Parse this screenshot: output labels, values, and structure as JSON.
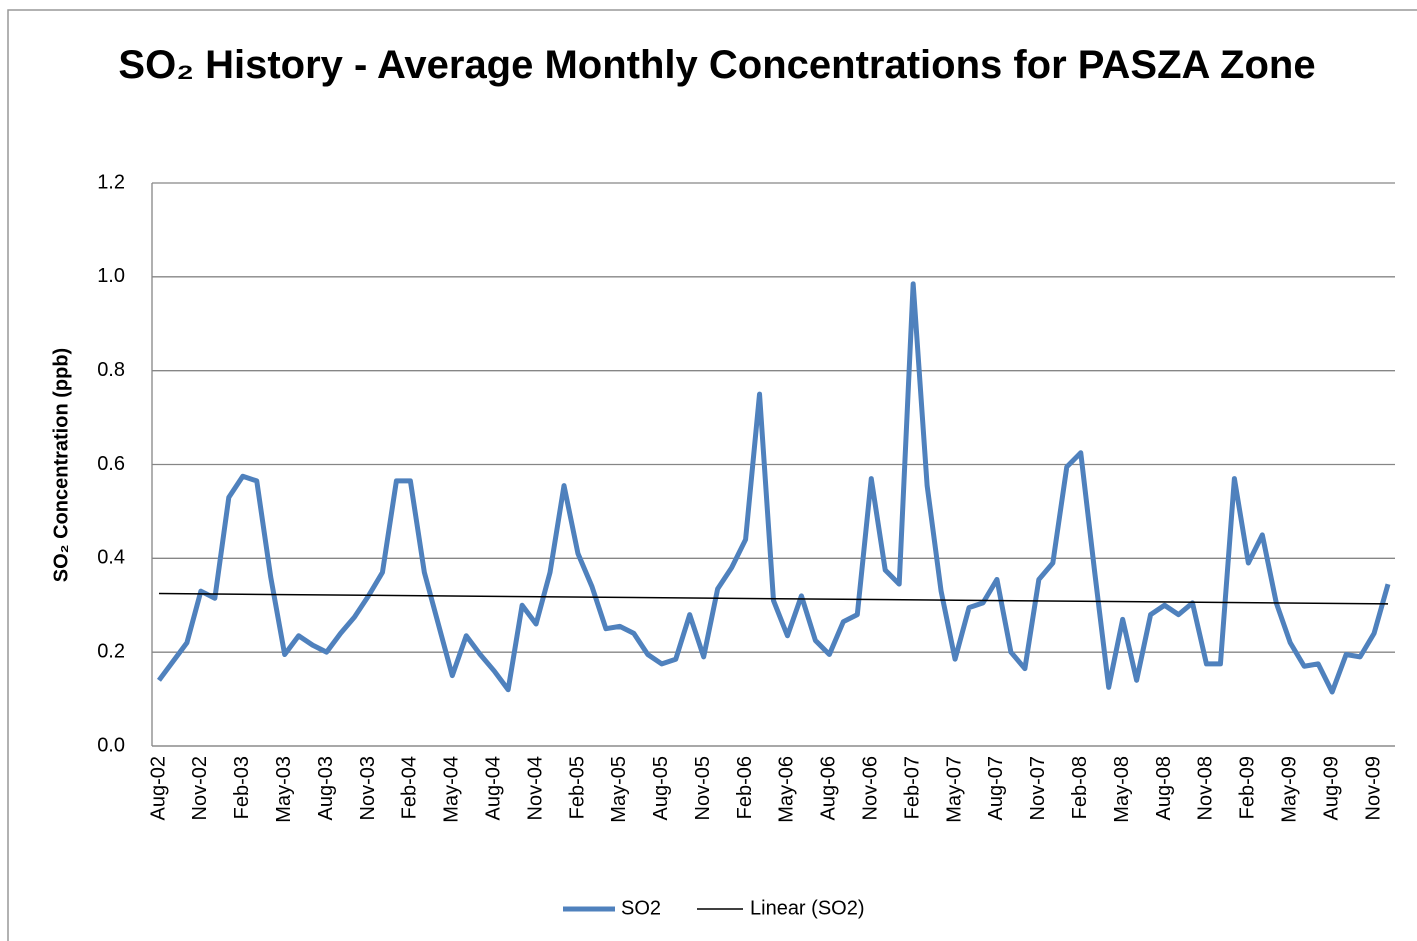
{
  "chart_data": {
    "type": "line",
    "title": "SO₂ History - Average Monthly Concentrations for PASZA Zone",
    "y_label": "SO₂ Concentration (ppb)",
    "categories": [
      "Aug-02",
      null,
      null,
      "Nov-02",
      null,
      null,
      "Feb-03",
      null,
      null,
      "May-03",
      null,
      null,
      "Aug-03",
      null,
      null,
      "Nov-03",
      null,
      null,
      "Feb-04",
      null,
      null,
      "May-04",
      null,
      null,
      "Aug-04",
      null,
      null,
      "Nov-04",
      null,
      null,
      "Feb-05",
      null,
      null,
      "May-05",
      null,
      null,
      "Aug-05",
      null,
      null,
      "Nov-05",
      null,
      null,
      "Feb-06",
      null,
      null,
      "May-06",
      null,
      null,
      "Aug-06",
      null,
      null,
      "Nov-06",
      null,
      null,
      "Feb-07",
      null,
      null,
      "May-07",
      null,
      null,
      "Aug-07",
      null,
      null,
      "Nov-07",
      null,
      null,
      "Feb-08",
      null,
      null,
      "May-08",
      null,
      null,
      "Aug-08",
      null,
      null,
      "Nov-08",
      null,
      null,
      "Feb-09",
      null,
      null,
      "May-09",
      null,
      null,
      "Aug-09",
      null,
      null,
      "Nov-09",
      null
    ],
    "series": [
      {
        "name": "SO2",
        "color": "#4f81bd",
        "values": [
          0.14,
          0.18,
          0.22,
          0.33,
          0.315,
          0.53,
          0.575,
          0.565,
          0.36,
          0.195,
          0.235,
          0.215,
          0.2,
          0.24,
          0.275,
          0.32,
          0.37,
          0.565,
          0.565,
          0.37,
          0.26,
          0.15,
          0.235,
          0.195,
          0.16,
          0.12,
          0.3,
          0.26,
          0.37,
          0.555,
          0.41,
          0.34,
          0.25,
          0.255,
          0.24,
          0.195,
          0.175,
          0.185,
          0.28,
          0.19,
          0.335,
          0.38,
          0.44,
          0.75,
          0.31,
          0.235,
          0.32,
          0.225,
          0.195,
          0.265,
          0.28,
          0.57,
          0.375,
          0.345,
          0.985,
          0.555,
          0.33,
          0.185,
          0.295,
          0.305,
          0.355,
          0.2,
          0.165,
          0.355,
          0.39,
          0.595,
          0.625,
          0.37,
          0.125,
          0.27,
          0.14,
          0.28,
          0.3,
          0.28,
          0.305,
          0.175,
          0.175,
          0.57,
          0.39,
          0.45,
          0.305,
          0.22,
          0.17,
          0.175,
          0.115,
          0.195,
          0.19,
          0.24,
          0.345
        ]
      }
    ],
    "trendline": {
      "name": "Linear (SO2)",
      "color": "#000000",
      "values": [
        0.325,
        0.303
      ]
    },
    "ylim": [
      0,
      1.2
    ],
    "yticks": [
      {
        "value": 0,
        "label": "0.0"
      },
      {
        "value": 0.2,
        "label": "0.2"
      },
      {
        "value": 0.4,
        "label": "0.4"
      },
      {
        "value": 0.6,
        "label": "0.6"
      },
      {
        "value": 0.8,
        "label": "0.8"
      },
      {
        "value": 1.0,
        "label": "1.0"
      },
      {
        "value": 1.2,
        "label": "1.2"
      }
    ],
    "grid": true
  }
}
